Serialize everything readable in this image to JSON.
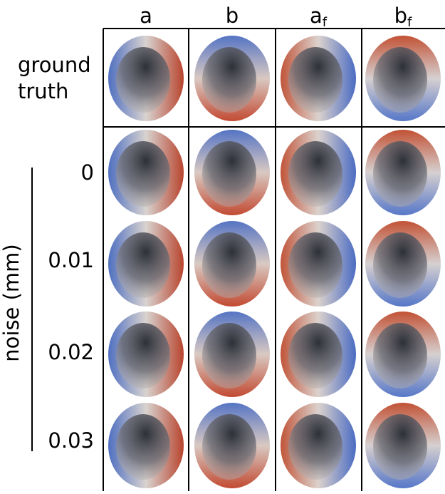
{
  "columns": [
    {
      "text": "a"
    },
    {
      "text": "b"
    },
    {
      "text": "a",
      "subscript": "f"
    },
    {
      "text": "b",
      "subscript": "f"
    }
  ],
  "rows": [
    {
      "label_lines": [
        "ground",
        "truth"
      ]
    },
    {
      "label": "0"
    },
    {
      "label": "0.01"
    },
    {
      "label": "0.02"
    },
    {
      "label": "0.03"
    }
  ],
  "row_group_label": "noise (mm)"
}
